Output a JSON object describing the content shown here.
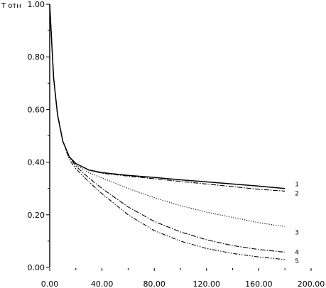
{
  "chart_data": {
    "type": "line",
    "ylabel": "T отн",
    "xlim": [
      0,
      200
    ],
    "ylim": [
      0,
      1
    ],
    "x_ticks": [
      "0.00",
      "40.00",
      "80.00",
      "120.00",
      "160.00",
      "200.00"
    ],
    "y_ticks": [
      "0.00",
      "0.20",
      "0.40",
      "0.60",
      "0.80",
      "1.00"
    ],
    "grid": false,
    "series": [
      {
        "name": "1",
        "style": "solid",
        "x": [
          0,
          3,
          6,
          10,
          15,
          20,
          30,
          40,
          60,
          80,
          100,
          120,
          140,
          160,
          180
        ],
        "y": [
          1.0,
          0.72,
          0.58,
          0.48,
          0.42,
          0.395,
          0.37,
          0.36,
          0.35,
          0.342,
          0.333,
          0.325,
          0.317,
          0.309,
          0.3
        ]
      },
      {
        "name": "2",
        "style": "dashdot",
        "x": [
          0,
          3,
          6,
          10,
          15,
          20,
          30,
          40,
          60,
          80,
          100,
          120,
          140,
          160,
          180
        ],
        "y": [
          1.0,
          0.72,
          0.58,
          0.48,
          0.42,
          0.395,
          0.37,
          0.358,
          0.347,
          0.337,
          0.327,
          0.317,
          0.307,
          0.297,
          0.29
        ]
      },
      {
        "name": "3",
        "style": "dotted",
        "x": [
          0,
          3,
          6,
          10,
          15,
          20,
          30,
          40,
          60,
          80,
          100,
          120,
          140,
          160,
          180
        ],
        "y": [
          1.0,
          0.72,
          0.58,
          0.48,
          0.42,
          0.39,
          0.36,
          0.34,
          0.3,
          0.265,
          0.235,
          0.21,
          0.19,
          0.17,
          0.155
        ]
      },
      {
        "name": "4",
        "style": "dashdot",
        "x": [
          0,
          3,
          6,
          10,
          15,
          20,
          30,
          40,
          60,
          80,
          100,
          120,
          140,
          160,
          180
        ],
        "y": [
          1.0,
          0.72,
          0.58,
          0.48,
          0.42,
          0.385,
          0.34,
          0.3,
          0.23,
          0.175,
          0.135,
          0.105,
          0.083,
          0.068,
          0.058
        ]
      },
      {
        "name": "5",
        "style": "dashdotdot",
        "x": [
          0,
          3,
          6,
          10,
          15,
          20,
          30,
          40,
          60,
          80,
          100,
          120,
          140,
          160,
          180
        ],
        "y": [
          1.0,
          0.72,
          0.58,
          0.48,
          0.41,
          0.375,
          0.325,
          0.28,
          0.2,
          0.14,
          0.1,
          0.072,
          0.053,
          0.04,
          0.03
        ]
      }
    ]
  }
}
